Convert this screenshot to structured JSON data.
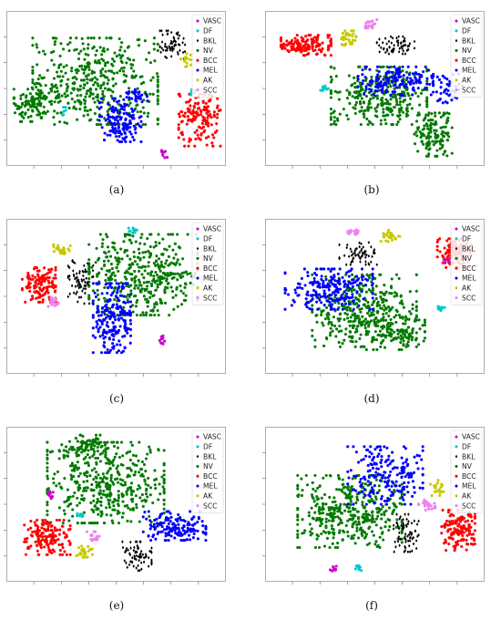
{
  "legend": [
    "VASC",
    "DF",
    "BKL",
    "NV",
    "BCC",
    "MEL",
    "AK",
    "SCC"
  ],
  "colors": {
    "VASC": "#cc00cc",
    "DF": "#00c8c8",
    "BKL": "#000000",
    "NV": "#007a00",
    "BCC": "#ff0000",
    "MEL": "#0000ff",
    "AK": "#c8c800",
    "SCC": "#ee82ee"
  },
  "captions": [
    "(a)",
    "(b)",
    "(c)",
    "(d)",
    "(e)",
    "(f)"
  ],
  "chart_data": [
    {
      "type": "scatter",
      "panel": "(a)",
      "legend_position": "upper-right",
      "clusters": [
        {
          "class": "NV",
          "cx": 0.4,
          "cy": 0.55,
          "rx": 0.3,
          "ry": 0.3,
          "n": 420
        },
        {
          "class": "NV",
          "cx": 0.1,
          "cy": 0.4,
          "rx": 0.09,
          "ry": 0.13,
          "n": 110
        },
        {
          "class": "MEL",
          "cx": 0.52,
          "cy": 0.28,
          "rx": 0.1,
          "ry": 0.15,
          "n": 150
        },
        {
          "class": "MEL",
          "cx": 0.6,
          "cy": 0.45,
          "rx": 0.05,
          "ry": 0.05,
          "n": 30
        },
        {
          "class": "BCC",
          "cx": 0.9,
          "cy": 0.28,
          "rx": 0.1,
          "ry": 0.18,
          "n": 150
        },
        {
          "class": "BKL",
          "cx": 0.77,
          "cy": 0.8,
          "rx": 0.06,
          "ry": 0.1,
          "n": 60
        },
        {
          "class": "AK",
          "cx": 0.84,
          "cy": 0.7,
          "rx": 0.03,
          "ry": 0.05,
          "n": 15
        },
        {
          "class": "VASC",
          "cx": 0.73,
          "cy": 0.05,
          "rx": 0.015,
          "ry": 0.03,
          "n": 10
        },
        {
          "class": "DF",
          "cx": 0.87,
          "cy": 0.47,
          "rx": 0.015,
          "ry": 0.03,
          "n": 10
        },
        {
          "class": "DF",
          "cx": 0.25,
          "cy": 0.33,
          "rx": 0.01,
          "ry": 0.04,
          "n": 6
        },
        {
          "class": "SCC",
          "cx": 0.92,
          "cy": 0.55,
          "rx": 0.02,
          "ry": 0.02,
          "n": 8
        }
      ]
    },
    {
      "type": "scatter",
      "panel": "(b)",
      "legend_position": "upper-right",
      "clusters": [
        {
          "class": "BCC",
          "cx": 0.17,
          "cy": 0.8,
          "rx": 0.12,
          "ry": 0.07,
          "n": 140
        },
        {
          "class": "NV",
          "cx": 0.52,
          "cy": 0.45,
          "rx": 0.23,
          "ry": 0.2,
          "n": 320
        },
        {
          "class": "NV",
          "cx": 0.78,
          "cy": 0.18,
          "rx": 0.09,
          "ry": 0.15,
          "n": 140
        },
        {
          "class": "MEL",
          "cx": 0.6,
          "cy": 0.55,
          "rx": 0.18,
          "ry": 0.1,
          "n": 160
        },
        {
          "class": "MEL",
          "cx": 0.85,
          "cy": 0.5,
          "rx": 0.08,
          "ry": 0.1,
          "n": 40
        },
        {
          "class": "BKL",
          "cx": 0.6,
          "cy": 0.8,
          "rx": 0.09,
          "ry": 0.06,
          "n": 60
        },
        {
          "class": "AK",
          "cx": 0.37,
          "cy": 0.85,
          "rx": 0.04,
          "ry": 0.05,
          "n": 30
        },
        {
          "class": "SCC",
          "cx": 0.48,
          "cy": 0.95,
          "rx": 0.03,
          "ry": 0.03,
          "n": 25
        },
        {
          "class": "DF",
          "cx": 0.26,
          "cy": 0.5,
          "rx": 0.02,
          "ry": 0.02,
          "n": 10
        }
      ]
    },
    {
      "type": "scatter",
      "panel": "(c)",
      "legend_position": "upper-right",
      "clusters": [
        {
          "class": "NV",
          "cx": 0.63,
          "cy": 0.65,
          "rx": 0.26,
          "ry": 0.28,
          "n": 420
        },
        {
          "class": "MEL",
          "cx": 0.48,
          "cy": 0.35,
          "rx": 0.09,
          "ry": 0.24,
          "n": 210
        },
        {
          "class": "BCC",
          "cx": 0.13,
          "cy": 0.58,
          "rx": 0.08,
          "ry": 0.12,
          "n": 130
        },
        {
          "class": "BKL",
          "cx": 0.33,
          "cy": 0.6,
          "rx": 0.06,
          "ry": 0.15,
          "n": 70
        },
        {
          "class": "AK",
          "cx": 0.24,
          "cy": 0.82,
          "rx": 0.04,
          "ry": 0.04,
          "n": 25
        },
        {
          "class": "SCC",
          "cx": 0.2,
          "cy": 0.46,
          "rx": 0.03,
          "ry": 0.03,
          "n": 20
        },
        {
          "class": "DF",
          "cx": 0.58,
          "cy": 0.96,
          "rx": 0.02,
          "ry": 0.02,
          "n": 10
        },
        {
          "class": "VASC",
          "cx": 0.72,
          "cy": 0.2,
          "rx": 0.015,
          "ry": 0.03,
          "n": 10
        }
      ]
    },
    {
      "type": "scatter",
      "panel": "(d)",
      "legend_position": "upper-right",
      "clusters": [
        {
          "class": "NV",
          "cx": 0.45,
          "cy": 0.4,
          "rx": 0.25,
          "ry": 0.25,
          "n": 380
        },
        {
          "class": "NV",
          "cx": 0.6,
          "cy": 0.25,
          "rx": 0.14,
          "ry": 0.12,
          "n": 100
        },
        {
          "class": "MEL",
          "cx": 0.28,
          "cy": 0.55,
          "rx": 0.21,
          "ry": 0.14,
          "n": 230
        },
        {
          "class": "BKL",
          "cx": 0.42,
          "cy": 0.8,
          "rx": 0.09,
          "ry": 0.08,
          "n": 60
        },
        {
          "class": "BCC",
          "cx": 0.88,
          "cy": 0.8,
          "rx": 0.08,
          "ry": 0.1,
          "n": 120
        },
        {
          "class": "AK",
          "cx": 0.57,
          "cy": 0.92,
          "rx": 0.05,
          "ry": 0.04,
          "n": 25
        },
        {
          "class": "SCC",
          "cx": 0.4,
          "cy": 0.95,
          "rx": 0.03,
          "ry": 0.02,
          "n": 20
        },
        {
          "class": "DF",
          "cx": 0.82,
          "cy": 0.42,
          "rx": 0.02,
          "ry": 0.02,
          "n": 10
        },
        {
          "class": "VASC",
          "cx": 0.84,
          "cy": 0.75,
          "rx": 0.015,
          "ry": 0.02,
          "n": 8
        }
      ]
    },
    {
      "type": "scatter",
      "panel": "(e)",
      "legend_position": "upper-right",
      "clusters": [
        {
          "class": "NV",
          "cx": 0.45,
          "cy": 0.65,
          "rx": 0.28,
          "ry": 0.28,
          "n": 440
        },
        {
          "class": "NV",
          "cx": 0.35,
          "cy": 0.9,
          "rx": 0.1,
          "ry": 0.08,
          "n": 80
        },
        {
          "class": "MEL",
          "cx": 0.78,
          "cy": 0.35,
          "rx": 0.15,
          "ry": 0.1,
          "n": 150
        },
        {
          "class": "BCC",
          "cx": 0.17,
          "cy": 0.27,
          "rx": 0.11,
          "ry": 0.12,
          "n": 150
        },
        {
          "class": "BKL",
          "cx": 0.6,
          "cy": 0.14,
          "rx": 0.07,
          "ry": 0.1,
          "n": 70
        },
        {
          "class": "AK",
          "cx": 0.35,
          "cy": 0.17,
          "rx": 0.04,
          "ry": 0.04,
          "n": 25
        },
        {
          "class": "SCC",
          "cx": 0.39,
          "cy": 0.28,
          "rx": 0.03,
          "ry": 0.03,
          "n": 20
        },
        {
          "class": "VASC",
          "cx": 0.19,
          "cy": 0.57,
          "rx": 0.02,
          "ry": 0.03,
          "n": 10
        },
        {
          "class": "DF",
          "cx": 0.32,
          "cy": 0.42,
          "rx": 0.02,
          "ry": 0.02,
          "n": 8
        }
      ]
    },
    {
      "type": "scatter",
      "panel": "(f)",
      "legend_position": "upper-right",
      "clusters": [
        {
          "class": "NV",
          "cx": 0.38,
          "cy": 0.45,
          "rx": 0.25,
          "ry": 0.25,
          "n": 420
        },
        {
          "class": "MEL",
          "cx": 0.55,
          "cy": 0.7,
          "rx": 0.18,
          "ry": 0.2,
          "n": 200
        },
        {
          "class": "BCC",
          "cx": 0.9,
          "cy": 0.32,
          "rx": 0.08,
          "ry": 0.14,
          "n": 140
        },
        {
          "class": "BKL",
          "cx": 0.65,
          "cy": 0.3,
          "rx": 0.06,
          "ry": 0.13,
          "n": 70
        },
        {
          "class": "SCC",
          "cx": 0.75,
          "cy": 0.5,
          "rx": 0.04,
          "ry": 0.04,
          "n": 25
        },
        {
          "class": "AK",
          "cx": 0.8,
          "cy": 0.62,
          "rx": 0.04,
          "ry": 0.06,
          "n": 20
        },
        {
          "class": "VASC",
          "cx": 0.3,
          "cy": 0.05,
          "rx": 0.015,
          "ry": 0.02,
          "n": 8
        },
        {
          "class": "DF",
          "cx": 0.42,
          "cy": 0.06,
          "rx": 0.015,
          "ry": 0.02,
          "n": 8
        }
      ]
    }
  ]
}
